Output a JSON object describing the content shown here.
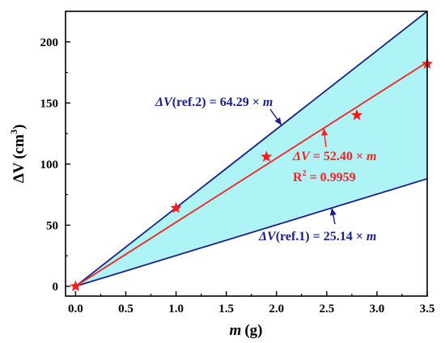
{
  "chart_data": {
    "type": "line",
    "xlabel": {
      "symbol": "m",
      "unit": "(g)"
    },
    "ylabel": {
      "symbol": "ΔV",
      "unit_open": "(cm",
      "unit_sup": "3",
      "unit_close": ")"
    },
    "xlim": [
      -0.1,
      3.5
    ],
    "ylim": [
      -8,
      225
    ],
    "x_ticks": [
      "0.0",
      "0.5",
      "1.0",
      "1.5",
      "2.0",
      "2.5",
      "3.0",
      "3.5"
    ],
    "y_ticks": [
      "0",
      "50",
      "100",
      "150",
      "200"
    ],
    "points": [
      {
        "x": 0.0,
        "y": 0
      },
      {
        "x": 1.0,
        "y": 64
      },
      {
        "x": 1.9,
        "y": 106
      },
      {
        "x": 2.8,
        "y": 140
      },
      {
        "x": 3.5,
        "y": 182
      }
    ],
    "lines": [
      {
        "id": "ref2",
        "slope": 64.29,
        "color": "#1b1f8a"
      },
      {
        "id": "fit",
        "slope": 52.4,
        "color": "#ff2020"
      },
      {
        "id": "ref1",
        "slope": 25.14,
        "color": "#1b1f8a"
      }
    ],
    "band_color": "#aef3f5",
    "annotations": {
      "ref2": {
        "lhs": "ΔV",
        "mid": "(ref.2) = 64.29 × ",
        "var": "m"
      },
      "fit": {
        "lhs": "ΔV",
        "mid": " = 52.40 × ",
        "var": "m",
        "r2_lhs": "R",
        "r2_sup": "2",
        "r2_rhs": " = 0.9959"
      },
      "ref1": {
        "lhs": "ΔV",
        "mid": "(ref.1) = 25.14 × ",
        "var": "m"
      }
    }
  }
}
